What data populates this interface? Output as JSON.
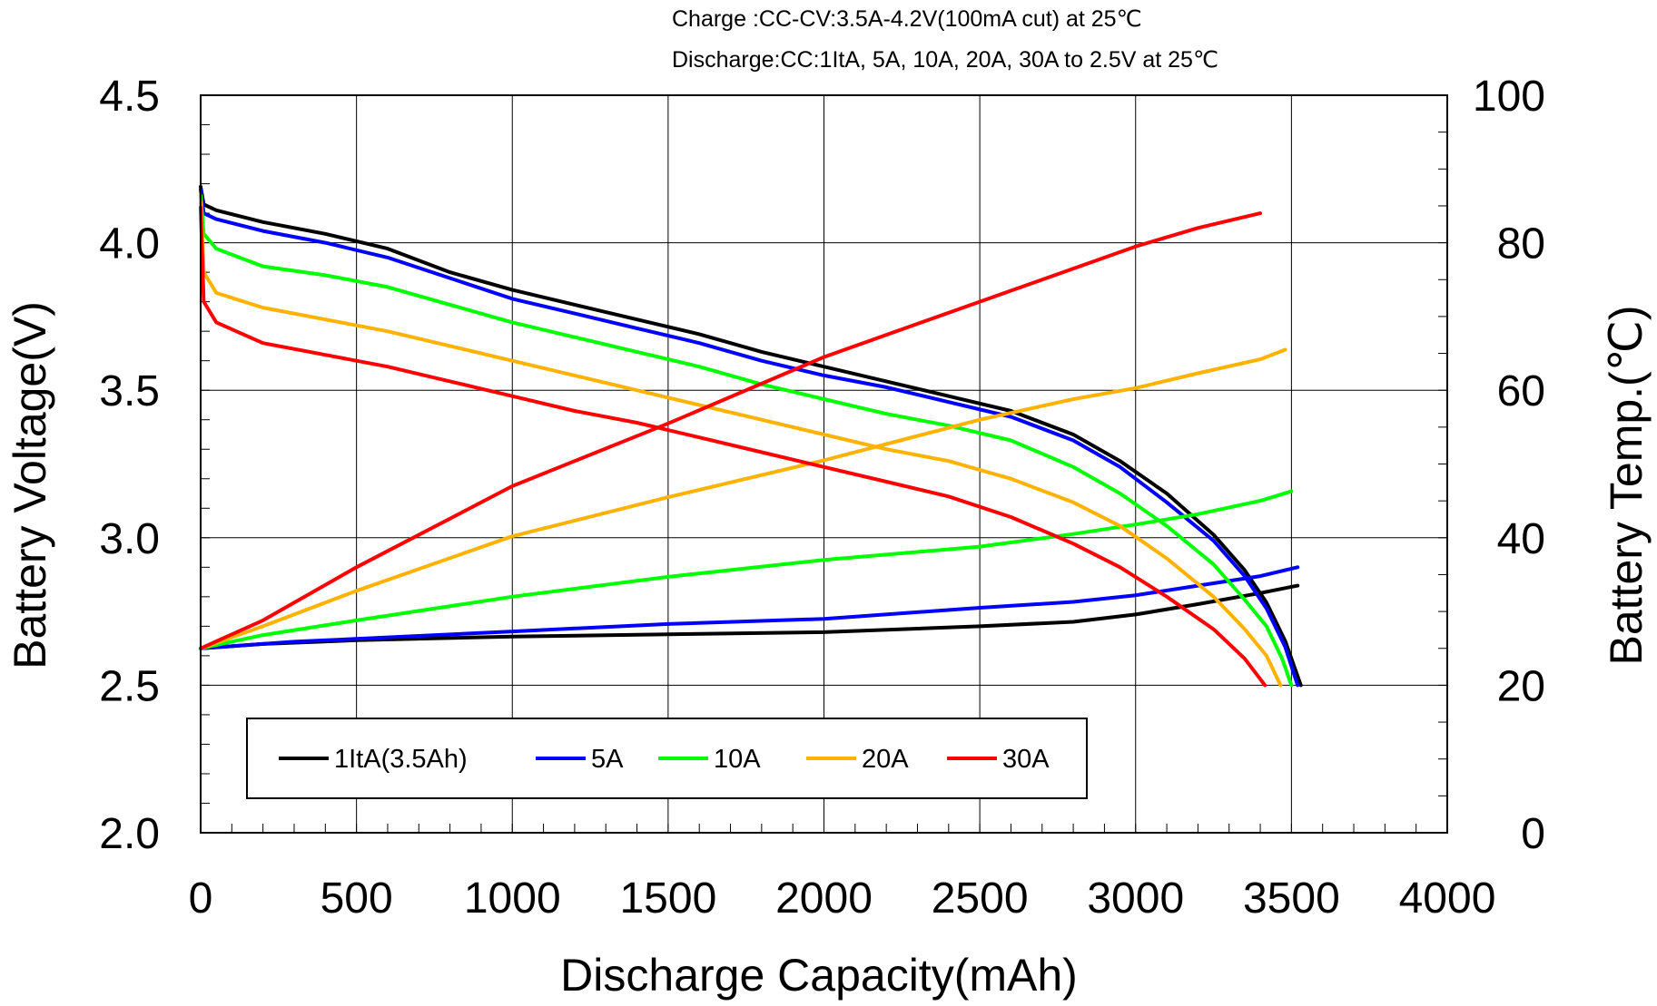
{
  "chart_data": {
    "type": "line",
    "notes": [
      "Charge :CC-CV:3.5A-4.2V(100mA cut) at 25℃",
      "Discharge:CC:1ItA, 5A, 10A, 20A, 30A to 2.5V at  25℃"
    ],
    "xlabel": "Discharge Capacity(mAh)",
    "ylabel": "Battery Voltage(V)",
    "y2label": "Battery Temp.(℃)",
    "xlim": [
      0,
      4000
    ],
    "ylim": [
      2.0,
      4.5
    ],
    "y2lim": [
      0,
      100
    ],
    "x_ticks": [
      "0",
      "500",
      "1000",
      "1500",
      "2000",
      "2500",
      "3000",
      "3500",
      "4000"
    ],
    "y_ticks": [
      "2.0",
      "2.5",
      "3.0",
      "3.5",
      "4.0",
      "4.5"
    ],
    "y2_ticks": [
      "0",
      "20",
      "40",
      "60",
      "80",
      "100"
    ],
    "grid": true,
    "legend_position": "bottom-left",
    "series": [
      {
        "name": "1ItA(3.5Ah)",
        "color": "#000000",
        "voltage": [
          [
            0,
            4.19
          ],
          [
            10,
            4.13
          ],
          [
            50,
            4.11
          ],
          [
            200,
            4.07
          ],
          [
            400,
            4.03
          ],
          [
            600,
            3.98
          ],
          [
            800,
            3.9
          ],
          [
            1000,
            3.84
          ],
          [
            1200,
            3.79
          ],
          [
            1400,
            3.74
          ],
          [
            1600,
            3.69
          ],
          [
            1800,
            3.63
          ],
          [
            2000,
            3.58
          ],
          [
            2200,
            3.53
          ],
          [
            2400,
            3.48
          ],
          [
            2600,
            3.43
          ],
          [
            2800,
            3.35
          ],
          [
            2950,
            3.26
          ],
          [
            3100,
            3.15
          ],
          [
            3250,
            3.01
          ],
          [
            3350,
            2.89
          ],
          [
            3420,
            2.78
          ],
          [
            3480,
            2.65
          ],
          [
            3530,
            2.5
          ]
        ],
        "temperature": [
          [
            0,
            25
          ],
          [
            200,
            25.6
          ],
          [
            500,
            26.1
          ],
          [
            1000,
            26.6
          ],
          [
            1500,
            26.9
          ],
          [
            2000,
            27.2
          ],
          [
            2500,
            28.0
          ],
          [
            2800,
            28.6
          ],
          [
            3000,
            29.6
          ],
          [
            3200,
            31.0
          ],
          [
            3400,
            32.5
          ],
          [
            3520,
            33.5
          ]
        ]
      },
      {
        "name": "5A",
        "color": "#0000ff",
        "voltage": [
          [
            0,
            4.18
          ],
          [
            10,
            4.1
          ],
          [
            50,
            4.08
          ],
          [
            200,
            4.04
          ],
          [
            400,
            4.0
          ],
          [
            600,
            3.95
          ],
          [
            800,
            3.88
          ],
          [
            1000,
            3.81
          ],
          [
            1200,
            3.76
          ],
          [
            1400,
            3.71
          ],
          [
            1600,
            3.66
          ],
          [
            1800,
            3.6
          ],
          [
            2000,
            3.55
          ],
          [
            2200,
            3.51
          ],
          [
            2400,
            3.46
          ],
          [
            2600,
            3.41
          ],
          [
            2800,
            3.33
          ],
          [
            2950,
            3.24
          ],
          [
            3100,
            3.12
          ],
          [
            3250,
            2.99
          ],
          [
            3350,
            2.87
          ],
          [
            3420,
            2.76
          ],
          [
            3480,
            2.63
          ],
          [
            3520,
            2.5
          ]
        ],
        "temperature": [
          [
            0,
            25
          ],
          [
            300,
            25.9
          ],
          [
            500,
            26.3
          ],
          [
            1000,
            27.3
          ],
          [
            1500,
            28.3
          ],
          [
            2000,
            29.0
          ],
          [
            2500,
            30.5
          ],
          [
            2800,
            31.3
          ],
          [
            3000,
            32.2
          ],
          [
            3200,
            33.5
          ],
          [
            3400,
            34.8
          ],
          [
            3520,
            36.0
          ]
        ]
      },
      {
        "name": "10A",
        "color": "#00ff00",
        "voltage": [
          [
            0,
            4.16
          ],
          [
            10,
            4.03
          ],
          [
            50,
            3.98
          ],
          [
            200,
            3.92
          ],
          [
            400,
            3.89
          ],
          [
            600,
            3.85
          ],
          [
            800,
            3.79
          ],
          [
            1000,
            3.73
          ],
          [
            1200,
            3.68
          ],
          [
            1400,
            3.63
          ],
          [
            1600,
            3.58
          ],
          [
            1800,
            3.52
          ],
          [
            2000,
            3.47
          ],
          [
            2200,
            3.42
          ],
          [
            2400,
            3.38
          ],
          [
            2600,
            3.33
          ],
          [
            2800,
            3.24
          ],
          [
            2950,
            3.15
          ],
          [
            3100,
            3.04
          ],
          [
            3250,
            2.91
          ],
          [
            3350,
            2.79
          ],
          [
            3420,
            2.7
          ],
          [
            3470,
            2.59
          ],
          [
            3500,
            2.5
          ]
        ],
        "temperature": [
          [
            0,
            25
          ],
          [
            200,
            26.8
          ],
          [
            500,
            28.8
          ],
          [
            1000,
            32.0
          ],
          [
            1500,
            34.7
          ],
          [
            2000,
            37.0
          ],
          [
            2500,
            38.8
          ],
          [
            2800,
            40.5
          ],
          [
            3000,
            41.8
          ],
          [
            3200,
            43.2
          ],
          [
            3400,
            45.0
          ],
          [
            3500,
            46.3
          ]
        ]
      },
      {
        "name": "20A",
        "color": "#ffb300",
        "voltage": [
          [
            0,
            4.14
          ],
          [
            10,
            3.9
          ],
          [
            50,
            3.83
          ],
          [
            200,
            3.78
          ],
          [
            400,
            3.74
          ],
          [
            600,
            3.7
          ],
          [
            800,
            3.65
          ],
          [
            1000,
            3.6
          ],
          [
            1200,
            3.55
          ],
          [
            1400,
            3.5
          ],
          [
            1600,
            3.45
          ],
          [
            1800,
            3.4
          ],
          [
            2000,
            3.35
          ],
          [
            2200,
            3.3
          ],
          [
            2400,
            3.26
          ],
          [
            2600,
            3.2
          ],
          [
            2800,
            3.12
          ],
          [
            2950,
            3.04
          ],
          [
            3100,
            2.93
          ],
          [
            3250,
            2.8
          ],
          [
            3350,
            2.69
          ],
          [
            3420,
            2.6
          ],
          [
            3465,
            2.5
          ]
        ],
        "temperature": [
          [
            0,
            25
          ],
          [
            200,
            28.0
          ],
          [
            500,
            32.8
          ],
          [
            1000,
            40.2
          ],
          [
            1500,
            45.5
          ],
          [
            2000,
            50.5
          ],
          [
            2500,
            56.0
          ],
          [
            2800,
            58.8
          ],
          [
            3000,
            60.3
          ],
          [
            3200,
            62.3
          ],
          [
            3400,
            64.2
          ],
          [
            3480,
            65.5
          ]
        ]
      },
      {
        "name": "30A",
        "color": "#ff0000",
        "voltage": [
          [
            0,
            4.12
          ],
          [
            10,
            3.8
          ],
          [
            50,
            3.73
          ],
          [
            200,
            3.66
          ],
          [
            400,
            3.62
          ],
          [
            600,
            3.58
          ],
          [
            800,
            3.53
          ],
          [
            1000,
            3.48
          ],
          [
            1200,
            3.43
          ],
          [
            1400,
            3.39
          ],
          [
            1600,
            3.34
          ],
          [
            1800,
            3.29
          ],
          [
            2000,
            3.24
          ],
          [
            2200,
            3.19
          ],
          [
            2400,
            3.14
          ],
          [
            2600,
            3.07
          ],
          [
            2800,
            2.98
          ],
          [
            2950,
            2.9
          ],
          [
            3100,
            2.8
          ],
          [
            3250,
            2.69
          ],
          [
            3350,
            2.59
          ],
          [
            3415,
            2.5
          ]
        ],
        "temperature": [
          [
            0,
            25
          ],
          [
            200,
            28.8
          ],
          [
            500,
            36.0
          ],
          [
            1000,
            47.0
          ],
          [
            1500,
            55.5
          ],
          [
            2000,
            64.5
          ],
          [
            2500,
            72.0
          ],
          [
            2800,
            76.5
          ],
          [
            3000,
            79.5
          ],
          [
            3200,
            82.0
          ],
          [
            3400,
            84.0
          ]
        ]
      }
    ]
  }
}
